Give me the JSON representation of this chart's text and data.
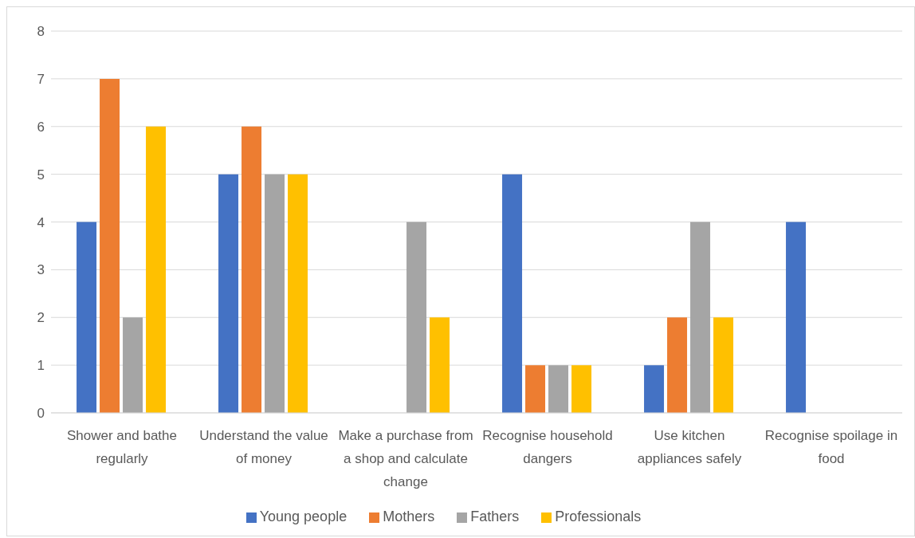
{
  "chart_data": {
    "type": "bar",
    "categories": [
      "Shower and bathe regularly",
      "Understand the value of money",
      "Make a purchase from a shop and calculate change",
      "Recognise household dangers",
      "Use kitchen appliances safely",
      "Recognise spoilage in food"
    ],
    "series": [
      {
        "name": "Young people",
        "color": "#4472c4",
        "values": [
          4,
          5,
          0,
          5,
          1,
          4
        ]
      },
      {
        "name": "Mothers",
        "color": "#ed7d31",
        "values": [
          7,
          6,
          0,
          1,
          2,
          0
        ]
      },
      {
        "name": "Fathers",
        "color": "#a5a5a5",
        "values": [
          2,
          5,
          4,
          1,
          4,
          0
        ]
      },
      {
        "name": "Professionals",
        "color": "#ffc000",
        "values": [
          6,
          5,
          2,
          1,
          2,
          0
        ]
      }
    ],
    "ylim": [
      0,
      8
    ],
    "yticks": [
      0,
      1,
      2,
      3,
      4,
      5,
      6,
      7,
      8
    ],
    "grid": "y",
    "legend": "bottom"
  }
}
